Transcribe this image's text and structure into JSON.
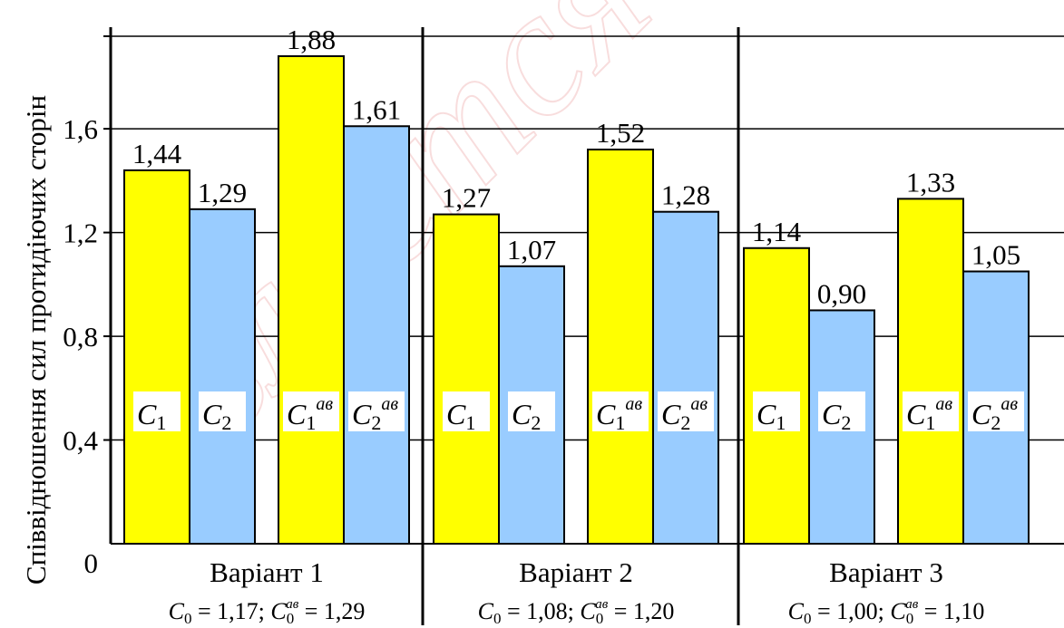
{
  "chart_data": {
    "type": "bar",
    "ylabel": "Співвідношення сил протидіючих сторін",
    "ylim": [
      0,
      1.88
    ],
    "yticks": [
      0,
      0.4,
      0.8,
      1.2,
      1.6
    ],
    "ytick_labels": [
      "0",
      "0,4",
      "0,8",
      "1,2",
      "1,6"
    ],
    "grid": true,
    "groups": [
      {
        "label": "Варіант 1",
        "formula": {
          "c0": "1,17",
          "c0ab": "1,29"
        },
        "bars": [
          {
            "series": "C1",
            "value": 1.44,
            "label": "1,44"
          },
          {
            "series": "C2",
            "value": 1.29,
            "label": "1,29"
          },
          {
            "series": "C1ab",
            "value": 1.88,
            "label": "1,88"
          },
          {
            "series": "C2ab",
            "value": 1.61,
            "label": "1,61"
          }
        ]
      },
      {
        "label": "Варіант 2",
        "formula": {
          "c0": "1,08",
          "c0ab": "1,20"
        },
        "bars": [
          {
            "series": "C1",
            "value": 1.27,
            "label": "1,27"
          },
          {
            "series": "C2",
            "value": 1.07,
            "label": "1,07"
          },
          {
            "series": "C1ab",
            "value": 1.52,
            "label": "1,52"
          },
          {
            "series": "C2ab",
            "value": 1.28,
            "label": "1,28"
          }
        ]
      },
      {
        "label": "Варіант 3",
        "formula": {
          "c0": "1,00",
          "c0ab": "1,10"
        },
        "bars": [
          {
            "series": "C1",
            "value": 1.14,
            "label": "1,14"
          },
          {
            "series": "C2",
            "value": 0.9,
            "label": "0,90"
          },
          {
            "series": "C1ab",
            "value": 1.33,
            "label": "1,33"
          },
          {
            "series": "C2ab",
            "value": 1.05,
            "label": "1,05"
          }
        ]
      }
    ],
    "series_symbols": {
      "C1": {
        "base": "C",
        "sub": "1",
        "sup": ""
      },
      "C2": {
        "base": "C",
        "sub": "2",
        "sup": ""
      },
      "C1ab": {
        "base": "C",
        "sub": "1",
        "sup": "ав"
      },
      "C2ab": {
        "base": "C",
        "sub": "2",
        "sup": "ав"
      }
    },
    "formula_symbols": {
      "base": "C",
      "sub": "0",
      "sup": "ав"
    },
    "colors": {
      "C1": "#ffff00",
      "C2": "#99ccff",
      "C1ab": "#ffff00",
      "C2ab": "#99ccff"
    }
  },
  "watermark": "является"
}
